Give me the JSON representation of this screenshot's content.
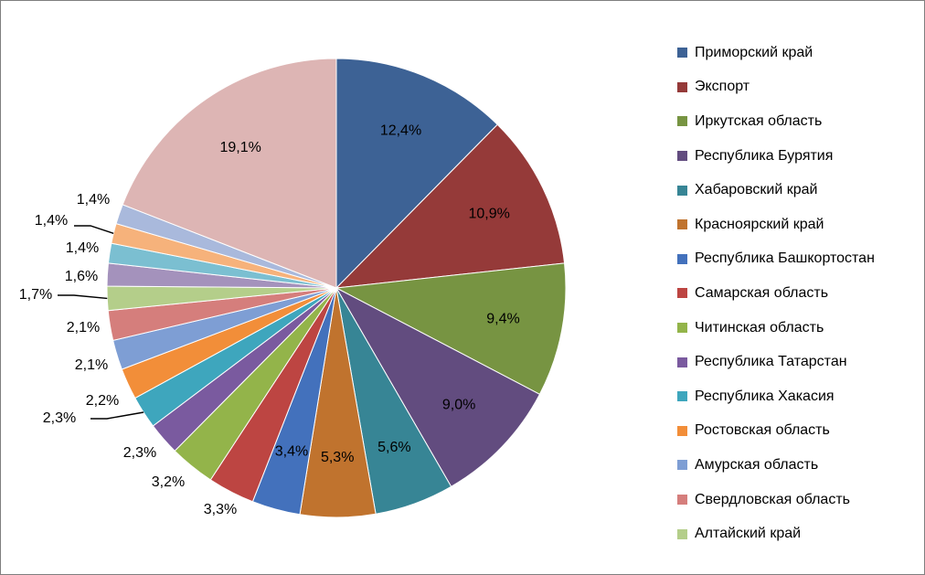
{
  "chart_data": {
    "type": "pie",
    "title": "",
    "legend_position": "right",
    "slices": [
      {
        "name": "Приморский край",
        "value": 12.4,
        "label": "12,4%",
        "color": "#3d6295"
      },
      {
        "name": "Экспорт",
        "value": 10.9,
        "label": "10,9%",
        "color": "#953a39"
      },
      {
        "name": "Иркутская область",
        "value": 9.4,
        "label": "9,4%",
        "color": "#779442"
      },
      {
        "name": "Республика Бурятия",
        "value": 9.0,
        "label": "9,0%",
        "color": "#624c7f"
      },
      {
        "name": "Хабаровский край",
        "value": 5.6,
        "label": "5,6%",
        "color": "#378595"
      },
      {
        "name": "Красноярский край",
        "value": 5.3,
        "label": "5,3%",
        "color": "#c0732e"
      },
      {
        "name": "Республика Башкортостан",
        "value": 3.4,
        "label": "3,4%",
        "color": "#4371bc"
      },
      {
        "name": "Самарская область",
        "value": 3.3,
        "label": "3,3%",
        "color": "#bd4542"
      },
      {
        "name": "Читинская область",
        "value": 3.2,
        "label": "3,2%",
        "color": "#93b44a"
      },
      {
        "name": "Республика Татарстан",
        "value": 2.3,
        "label": "2,3%",
        "color": "#7a5a9f"
      },
      {
        "name": "Республика Хакасия",
        "value": 2.3,
        "label": "2,3%",
        "color": "#3ea6bd"
      },
      {
        "name": "Ростовская область",
        "value": 2.2,
        "label": "2,2%",
        "color": "#f28e39"
      },
      {
        "name": "Амурская область",
        "value": 2.1,
        "label": "2,1%",
        "color": "#7e9ed4"
      },
      {
        "name": "Свердловская область",
        "value": 2.1,
        "label": "2,1%",
        "color": "#d57e7c"
      },
      {
        "name": "Алтайский край",
        "value": 1.7,
        "label": "1,7%",
        "color": "#b4ce8a"
      },
      {
        "name": "",
        "value": 1.6,
        "label": "1,6%",
        "color": "#a492bc"
      },
      {
        "name": "",
        "value": 1.4,
        "label": "1,4%",
        "color": "#7bbfd1"
      },
      {
        "name": "",
        "value": 1.4,
        "label": "1,4%",
        "color": "#f6b27b"
      },
      {
        "name": "",
        "value": 1.4,
        "label": "1,4%",
        "color": "#a9b9dc"
      },
      {
        "name": "",
        "value": 19.1,
        "label": "19,1%",
        "color": "#ddb5b4"
      }
    ]
  }
}
